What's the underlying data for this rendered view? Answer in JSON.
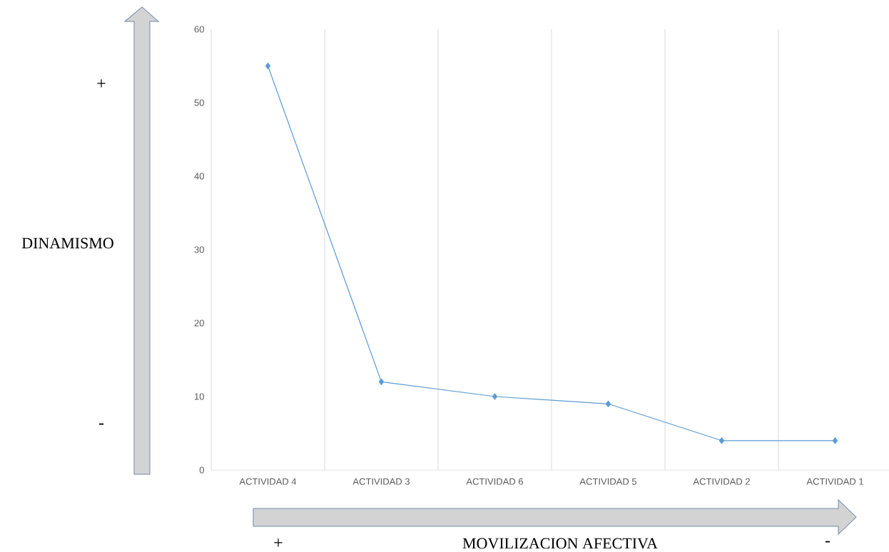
{
  "chart_data": {
    "type": "line",
    "categories": [
      "ACTIVIDAD 4",
      "ACTIVIDAD 3",
      "ACTIVIDAD 6",
      "ACTIVIDAD 5",
      "ACTIVIDAD 2",
      "ACTIVIDAD 1"
    ],
    "values": [
      55,
      12,
      10,
      9,
      4,
      4
    ],
    "color": "#5b9bd5",
    "marker": "diamond",
    "ylim": [
      0,
      60
    ],
    "yticks": [
      0,
      10,
      20,
      30,
      40,
      50,
      60
    ],
    "grid": "x",
    "xlabel": "MOVILIZACION AFECTIVA",
    "annotations": [
      "+",
      "DINAMISMO",
      "-",
      "+",
      "-"
    ]
  }
}
